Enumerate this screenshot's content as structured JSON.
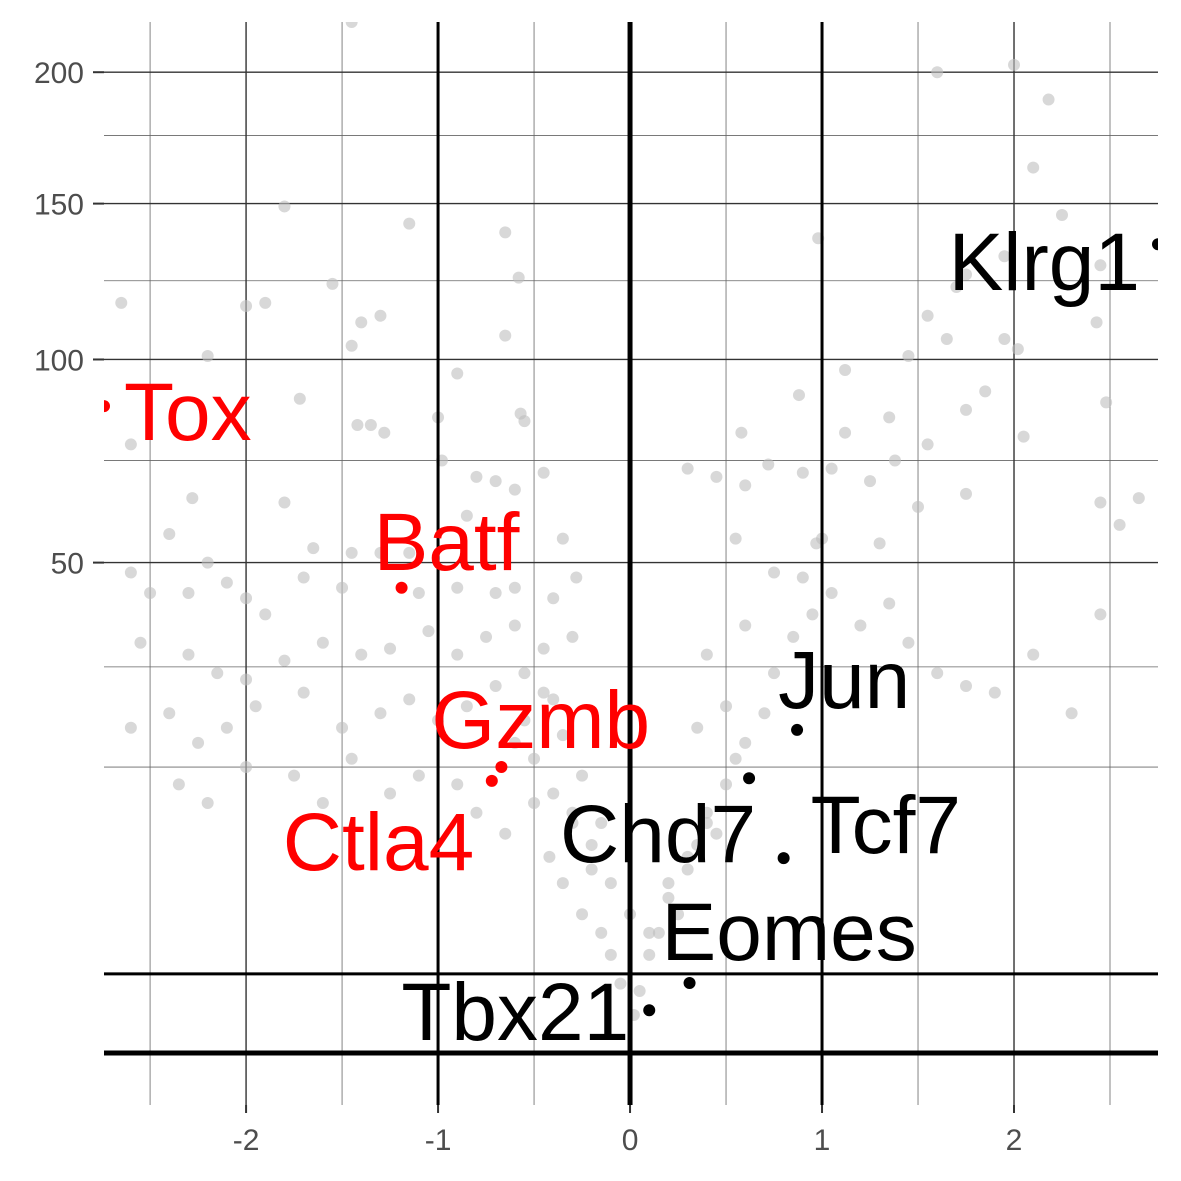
{
  "chart_data": {
    "type": "scatter",
    "y_scale": "sqrt",
    "xlim": [
      -2.74,
      2.75
    ],
    "ylim": [
      0,
      221
    ],
    "xticks": [
      -2,
      -1,
      0,
      1,
      2
    ],
    "yticks": [
      50,
      100,
      150,
      200
    ],
    "x_minor_grid": [
      -2.5,
      -1.5,
      -0.5,
      0.5,
      1.5,
      2.5
    ],
    "y_minor_grid": [
      17,
      31,
      73,
      124,
      175
    ],
    "grid": true,
    "vlines": [
      -1,
      0,
      1
    ],
    "hlines": [
      0,
      1.3
    ],
    "series": [
      {
        "color": "#bebebe",
        "x": [
          -1.45,
          -2.65,
          -2.2,
          -1.8,
          -1.55,
          -1.45,
          -1.4,
          -1.3,
          -1.15,
          -0.65,
          -0.58,
          -0.65,
          -0.9,
          -2.0,
          -1.9,
          -1.72,
          -1.42,
          -1.35,
          -1.28,
          -1.0,
          -0.57,
          -0.55,
          -0.98,
          -0.8,
          -0.7,
          -0.6,
          -0.45,
          -2.28,
          -2.6,
          -1.8,
          -2.4,
          -1.65,
          -1.45,
          -1.3,
          -2.6,
          -2.5,
          -2.3,
          -2.1,
          -2.0,
          -1.9,
          -1.7,
          -1.5,
          -1.1,
          -0.9,
          -0.7,
          -0.6,
          -0.4,
          -0.28,
          -2.55,
          -2.3,
          -2.15,
          -2.0,
          -1.8,
          -1.6,
          -1.4,
          -1.25,
          -1.05,
          -0.9,
          -0.75,
          -0.6,
          -0.45,
          -0.3,
          -2.6,
          -2.4,
          -2.25,
          -2.1,
          -1.95,
          -1.7,
          -1.5,
          -1.3,
          -1.15,
          -1.0,
          -0.85,
          -0.55,
          -0.4,
          -2.35,
          -2.2,
          -2.0,
          -1.75,
          -1.6,
          -1.45,
          -1.25,
          -1.1,
          -0.9,
          -0.8,
          -0.65,
          -0.5,
          -0.42,
          -0.35,
          -0.3,
          -0.25,
          -0.2,
          -0.15,
          -0.1,
          -0.05,
          0.02,
          0.05,
          0.1,
          0.15,
          0.2,
          0.25,
          0.3,
          0.35,
          0.4,
          0.45,
          0.5,
          0.55,
          0.6,
          0.5,
          0.35,
          0.7,
          0.75,
          0.6,
          0.4,
          0.85,
          0.95,
          1.05,
          1.2,
          1.35,
          1.45,
          1.6,
          1.75,
          1.9,
          2.1,
          2.3,
          2.45,
          0.75,
          0.9,
          1.0,
          1.3,
          1.5,
          1.75,
          2.55,
          2.65,
          2.45,
          0.3,
          0.45,
          0.6,
          0.72,
          0.9,
          1.05,
          1.25,
          1.38,
          1.55,
          0.58,
          1.12,
          1.35,
          1.75,
          1.85,
          2.05,
          2.48,
          0.88,
          1.12,
          1.45,
          1.65,
          1.55,
          1.95,
          2.02,
          2.43,
          2.45,
          1.75,
          1.7,
          1.95,
          2.25,
          2.1,
          2.18,
          2.0,
          1.6,
          0.98,
          0.97,
          0.55,
          -0.35,
          -0.85,
          -1.15,
          -2.2,
          -0.6,
          -0.5,
          -0.4,
          -0.3,
          -0.2,
          -0.1,
          0.0,
          -0.45,
          -0.35,
          -0.25,
          -0.15,
          0.1,
          0.2,
          0.3,
          0.4,
          -0.7,
          -0.55
        ],
        "values": [
          221,
          117,
          101,
          149,
          123,
          104,
          111,
          113,
          143,
          140,
          125,
          107,
          96,
          116,
          117,
          89,
          82,
          82,
          80,
          84,
          85,
          83,
          73,
          69,
          68,
          66,
          70,
          64,
          77,
          63,
          56,
          53,
          52,
          52,
          48,
          44,
          44,
          46,
          43,
          40,
          47,
          45,
          44,
          45,
          44,
          45,
          43,
          47,
          35,
          33,
          30,
          29,
          32,
          35,
          33,
          34,
          37,
          33,
          36,
          38,
          34,
          36,
          22,
          24,
          20,
          22,
          25,
          27,
          22,
          24,
          26,
          23,
          25,
          23,
          26,
          15,
          13,
          17,
          16,
          13,
          18,
          14,
          16,
          15,
          12,
          10,
          13,
          8,
          6,
          11,
          4,
          7,
          3,
          2,
          1,
          0.3,
          0.8,
          2,
          3,
          5,
          4,
          7,
          9,
          12,
          10,
          15,
          18,
          20,
          25,
          22,
          24,
          30,
          38,
          33,
          36,
          40,
          44,
          38,
          42,
          35,
          30,
          28,
          27,
          33,
          24,
          40,
          48,
          47,
          55,
          54,
          62,
          65,
          58,
          64,
          63,
          71,
          69,
          67,
          72,
          70,
          71,
          68,
          73,
          77,
          80,
          80,
          84,
          86,
          91,
          79,
          88,
          90,
          97,
          101,
          106,
          113,
          106,
          103,
          111,
          129,
          126,
          122,
          132,
          146,
          163,
          189,
          203,
          200,
          138,
          54,
          55,
          55,
          60,
          52,
          50,
          20,
          18,
          14,
          12,
          9,
          6,
          4,
          27,
          21,
          16,
          11,
          3,
          6,
          8,
          11,
          28,
          30
        ]
      },
      {
        "color": "#ff0000",
        "x": [
          -2.74,
          -1.19,
          -0.67,
          -0.72
        ],
        "values": [
          87,
          45,
          17,
          15.4
        ],
        "point_labels": [
          "Tox",
          "Batf",
          "Gzmb",
          "Ctla4"
        ]
      },
      {
        "color": "#000000",
        "x": [
          2.75,
          0.87,
          0.62,
          0.8,
          0.31,
          0.1
        ],
        "values": [
          136,
          21.7,
          15.7,
          7.9,
          1.02,
          0.38
        ],
        "point_labels": [
          "Klrg1",
          "Jun",
          "Chd7",
          "Tcf7",
          "Eomes",
          "Tbx21"
        ]
      }
    ]
  }
}
